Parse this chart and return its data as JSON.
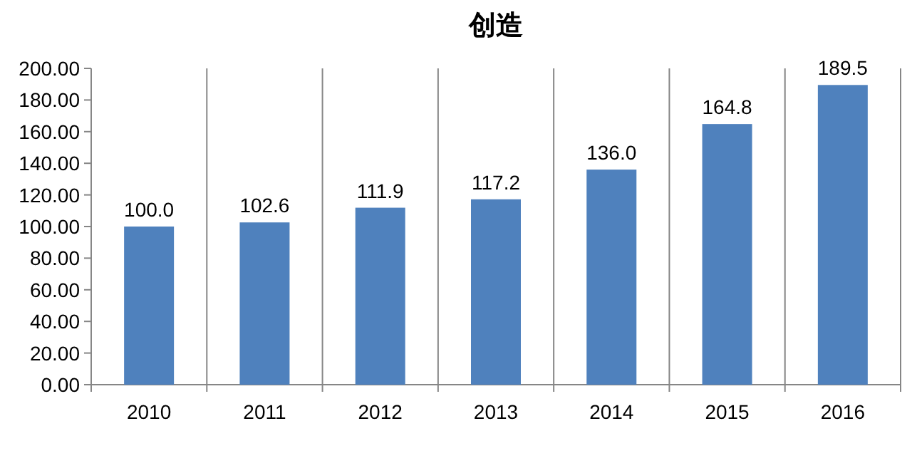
{
  "chart_data": {
    "type": "bar",
    "title": "创造",
    "categories": [
      "2010",
      "2011",
      "2012",
      "2013",
      "2014",
      "2015",
      "2016"
    ],
    "values": [
      100.0,
      102.6,
      111.9,
      117.2,
      136.0,
      164.8,
      189.5
    ],
    "value_labels": [
      "100.0",
      "102.6",
      "111.9",
      "117.2",
      "136.0",
      "164.8",
      "189.5"
    ],
    "color": "#4f81bd",
    "ylim": [
      0,
      200
    ],
    "yticks": [
      {
        "value": 0,
        "label": "0.00"
      },
      {
        "value": 20,
        "label": "20.00"
      },
      {
        "value": 40,
        "label": "40.00"
      },
      {
        "value": 60,
        "label": "60.00"
      },
      {
        "value": 80,
        "label": "80.00"
      },
      {
        "value": 100,
        "label": "100.00"
      },
      {
        "value": 120,
        "label": "120.00"
      },
      {
        "value": 140,
        "label": "140.00"
      },
      {
        "value": 160,
        "label": "160.00"
      },
      {
        "value": 180,
        "label": "180.00"
      },
      {
        "value": 200,
        "label": "200.00"
      }
    ],
    "grid": "x",
    "legend": false
  }
}
